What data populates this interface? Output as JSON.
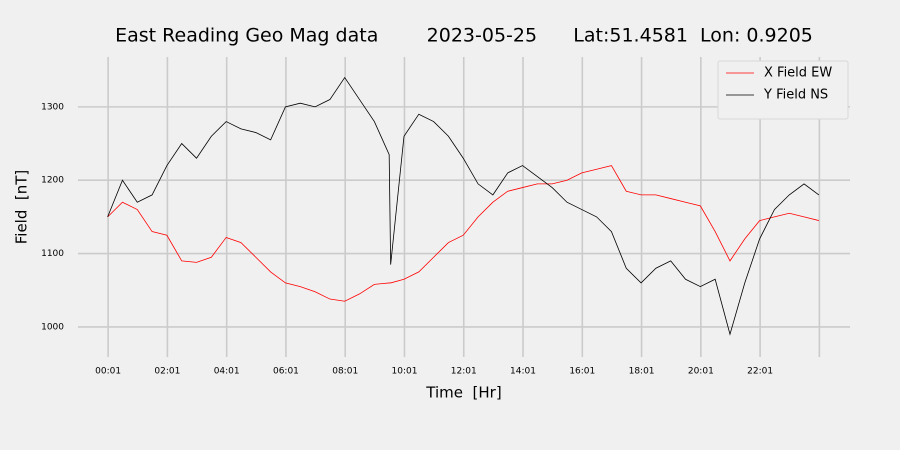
{
  "chart_data": {
    "type": "line",
    "title": "East Reading Geo Mag data        2023-05-25      Lat:51.4581  Lon: 0.9205",
    "x_label": "Time  [Hr]",
    "y_label": "Field  [nT]",
    "x": [
      0,
      0.5,
      1,
      1.5,
      2,
      2.5,
      3,
      3.5,
      4,
      4.5,
      5,
      5.5,
      6,
      6.5,
      7,
      7.5,
      8,
      8.5,
      9,
      9.5,
      9.55,
      10,
      10.5,
      11,
      11.5,
      12,
      12.5,
      13,
      13.5,
      14,
      14.5,
      15,
      15.5,
      16,
      16.5,
      17,
      17.5,
      18,
      18.5,
      19,
      19.5,
      20,
      20.5,
      21,
      21.5,
      22,
      22.5,
      23,
      23.5,
      24
    ],
    "series": [
      {
        "name": "X Field EW",
        "color": "#ff0000",
        "values": [
          1150,
          1170,
          1160,
          1130,
          1125,
          1090,
          1088,
          1095,
          1122,
          1115,
          1095,
          1075,
          1060,
          1055,
          1048,
          1038,
          1035,
          1045,
          1058,
          1060,
          1060,
          1065,
          1075,
          1095,
          1115,
          1125,
          1150,
          1170,
          1185,
          1190,
          1195,
          1195,
          1200,
          1210,
          1215,
          1220,
          1185,
          1180,
          1180,
          1175,
          1170,
          1165,
          1130,
          1090,
          1120,
          1145,
          1150,
          1155,
          1150,
          1145
        ]
      },
      {
        "name": "Y Field NS",
        "color": "#000000",
        "values": [
          1150,
          1200,
          1170,
          1180,
          1220,
          1250,
          1230,
          1260,
          1280,
          1270,
          1265,
          1255,
          1300,
          1305,
          1300,
          1310,
          1340,
          1310,
          1280,
          1235,
          1085,
          1260,
          1290,
          1280,
          1260,
          1230,
          1195,
          1180,
          1210,
          1220,
          1205,
          1190,
          1170,
          1160,
          1150,
          1130,
          1080,
          1060,
          1080,
          1090,
          1065,
          1055,
          1065,
          990,
          1060,
          1120,
          1160,
          1180,
          1195,
          1180
        ]
      }
    ],
    "xlim": [
      -1,
      25.05
    ],
    "xticks": [
      {
        "value": 0.0167,
        "label": "00:01"
      },
      {
        "value": 2.0167,
        "label": "02:01"
      },
      {
        "value": 4.0167,
        "label": "04:01"
      },
      {
        "value": 6.0167,
        "label": "06:01"
      },
      {
        "value": 8.0167,
        "label": "08:01"
      },
      {
        "value": 10.0167,
        "label": "10:01"
      },
      {
        "value": 12.0167,
        "label": "12:01"
      },
      {
        "value": 14.0167,
        "label": "14:01"
      },
      {
        "value": 16.0167,
        "label": "16:01"
      },
      {
        "value": 18.0167,
        "label": "18:01"
      },
      {
        "value": 20.0167,
        "label": "20:01"
      },
      {
        "value": 22.0167,
        "label": "22:01"
      },
      {
        "value": 24.0167,
        "label": null
      }
    ],
    "ylim": [
      959,
      1368
    ],
    "yticks": [
      1000,
      1100,
      1200,
      1300
    ],
    "grid": true,
    "legend": "upper right"
  }
}
